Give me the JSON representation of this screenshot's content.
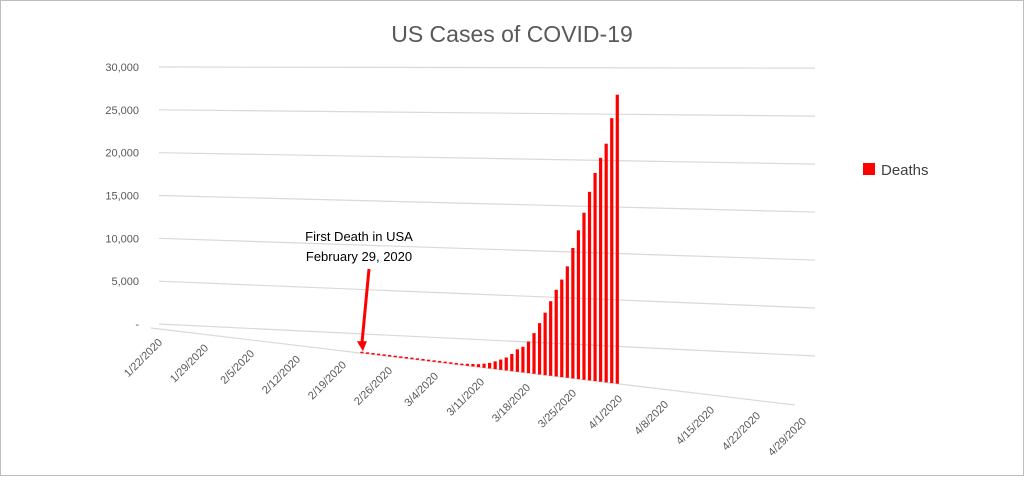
{
  "chart_data": {
    "type": "bar",
    "title": "US Cases of COVID-19",
    "xlabel": "",
    "ylabel": "",
    "ylim": [
      0,
      30000
    ],
    "y_ticks": [
      0,
      5000,
      10000,
      15000,
      20000,
      25000,
      30000
    ],
    "y_tick_labels": [
      "-",
      "5,000",
      "10,000",
      "15,000",
      "20,000",
      "25,000",
      "30,000"
    ],
    "x_tick_labels": [
      "1/22/2020",
      "1/29/2020",
      "2/5/2020",
      "2/12/2020",
      "2/19/2020",
      "2/26/2020",
      "3/4/2020",
      "3/11/2020",
      "3/18/2020",
      "3/25/2020",
      "4/1/2020",
      "4/8/2020",
      "4/15/2020",
      "4/22/2020",
      "4/29/2020"
    ],
    "x_range": [
      "1/22/2020",
      "4/29/2020"
    ],
    "grid": true,
    "legend_position": "right",
    "series": [
      {
        "name": "Deaths",
        "color": "#ff0000",
        "x": [
          "2/29/2020",
          "3/1/2020",
          "3/2/2020",
          "3/3/2020",
          "3/4/2020",
          "3/5/2020",
          "3/6/2020",
          "3/7/2020",
          "3/8/2020",
          "3/9/2020",
          "3/10/2020",
          "3/11/2020",
          "3/12/2020",
          "3/13/2020",
          "3/14/2020",
          "3/15/2020",
          "3/16/2020",
          "3/17/2020",
          "3/18/2020",
          "3/19/2020",
          "3/20/2020",
          "3/21/2020",
          "3/22/2020",
          "3/23/2020",
          "3/24/2020",
          "3/25/2020",
          "3/26/2020",
          "3/27/2020",
          "3/28/2020",
          "3/29/2020",
          "3/30/2020",
          "3/31/2020",
          "4/1/2020",
          "4/2/2020",
          "4/3/2020",
          "4/4/2020",
          "4/5/2020",
          "4/6/2020",
          "4/7/2020",
          "4/8/2020",
          "4/9/2020",
          "4/10/2020",
          "4/11/2020",
          "4/12/2020",
          "4/13/2020",
          "4/14/2020",
          "4/15/2020"
        ],
        "values": [
          1,
          1,
          6,
          9,
          11,
          12,
          15,
          19,
          22,
          26,
          30,
          38,
          41,
          48,
          57,
          68,
          86,
          109,
          150,
          206,
          255,
          301,
          414,
          555,
          780,
          1028,
          1300,
          1712,
          2246,
          2555,
          3150,
          4047,
          5105,
          6211,
          7406,
          8598,
          9663,
          11026,
          12895,
          14695,
          16478,
          18586,
          20486,
          22020,
          23447,
          25989,
          28325
        ]
      }
    ]
  },
  "annotation": {
    "line1": "First Death in USA",
    "line2": "February 29, 2020",
    "target_date": "2/29/2020"
  }
}
